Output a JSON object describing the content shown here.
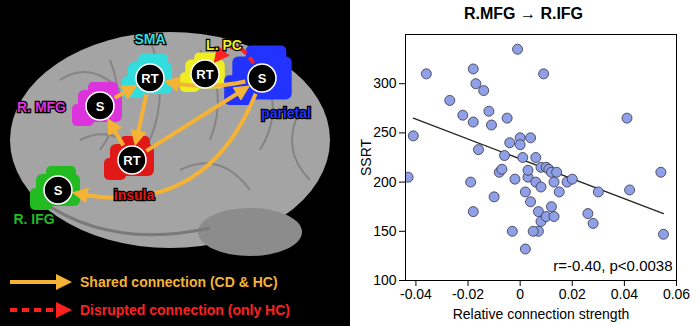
{
  "diagram": {
    "nodes": [
      {
        "region": "SMA",
        "label": "RT",
        "color": "#33dddd"
      },
      {
        "region": "L. PC",
        "label": "RT",
        "color": "#eeee22"
      },
      {
        "region": "R. MFG",
        "label": "S",
        "color": "#dd33dd"
      },
      {
        "region": "parietal",
        "label": "S",
        "color": "#2233ff"
      },
      {
        "region": "insula",
        "label": "RT",
        "color": "#e01818"
      },
      {
        "region": "R. IFG",
        "label": "S",
        "color": "#22bb22"
      }
    ],
    "edges": [
      {
        "from": 2,
        "to": 0,
        "kind": "shared"
      },
      {
        "from": 4,
        "to": 2,
        "kind": "shared"
      },
      {
        "from": 0,
        "to": 4,
        "kind": "shared"
      },
      {
        "from": 3,
        "to": 0,
        "kind": "shared"
      },
      {
        "from": 4,
        "to": 3,
        "kind": "shared"
      },
      {
        "from": 3,
        "to": 5,
        "kind": "shared"
      },
      {
        "from": 3,
        "to": 1,
        "kind": "disrupted"
      }
    ],
    "legend": [
      {
        "kind": "shared",
        "label": "Shared connection (CD & HC)",
        "color": "#f5b335",
        "line_style": "solid"
      },
      {
        "kind": "disrupted",
        "label": "Disrupted connection (only HC)",
        "color": "#ff2020",
        "line_style": "dashed"
      }
    ]
  },
  "chart_data": {
    "type": "scatter",
    "title": "R.MFG → R.IFG",
    "x_label": "Relative connection strength",
    "y_label": "SSRT",
    "annotation": "r=-0.40, p<0.0038",
    "color": "#8fa0e8",
    "marker": "circle",
    "grid": false,
    "xlim": [
      -0.044,
      0.06
    ],
    "xticks": [
      -0.04,
      -0.02,
      0,
      0.02,
      0.04,
      0.06
    ],
    "ylim": [
      100,
      350
    ],
    "yticks": [
      100,
      150,
      200,
      250,
      300
    ],
    "x": [
      -0.043,
      -0.041,
      -0.036,
      -0.027,
      -0.022,
      -0.018,
      -0.017,
      -0.018,
      -0.014,
      -0.012,
      -0.019,
      -0.018,
      -0.016,
      -0.011,
      -0.008,
      -0.007,
      -0.01,
      -0.005,
      -0.006,
      -0.004,
      -0.002,
      -0.001,
      0.0,
      0.0,
      0.001,
      0.003,
      0.002,
      0.004,
      0.004,
      0.006,
      0.006,
      0.008,
      0.008,
      0.009,
      0.01,
      0.011,
      0.012,
      0.007,
      0.008,
      0.007,
      0.01,
      0.012,
      0.013,
      0.014,
      0.013,
      0.015,
      0.018,
      0.026,
      0.028,
      0.03,
      0.003,
      0.005,
      0.002,
      0.041,
      0.042,
      0.054,
      0.055,
      -0.003,
      0.02
    ],
    "values": [
      205,
      247,
      310,
      283,
      268,
      315,
      300,
      261,
      293,
      272,
      200,
      170,
      233,
      258,
      210,
      213,
      185,
      265,
      227,
      240,
      203,
      335,
      245,
      238,
      225,
      205,
      190,
      180,
      245,
      225,
      200,
      215,
      195,
      310,
      215,
      213,
      210,
      170,
      160,
      150,
      165,
      175,
      165,
      210,
      200,
      190,
      200,
      168,
      158,
      190,
      212,
      150,
      132,
      265,
      192,
      210,
      147,
      150,
      203
    ],
    "trend_line": {
      "x": [
        -0.041,
        0.055
      ],
      "values": [
        265,
        168
      ]
    }
  }
}
